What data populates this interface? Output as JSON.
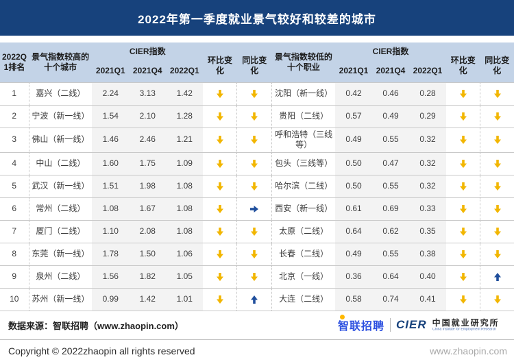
{
  "title": "2022年第一季度就业景气较好和较差的城市",
  "colors": {
    "banner": "#17427C",
    "header_bg": "#C3D3E7",
    "stripe_bg": "#F3F3F3",
    "arrow_down_yellow": "#F2B600",
    "arrow_up_blue": "#1F4E9C"
  },
  "table_headers": {
    "rank": "2022Q1排名",
    "left_group": "景气指数较高的十个城市",
    "right_group": "景气指数较低的十个职业",
    "cier": "CIER指数",
    "quarters": [
      "2021Q1",
      "2021Q4",
      "2022Q1"
    ],
    "mom": "环比变化",
    "yoy": "同比变化"
  },
  "chart_data": {
    "type": "table",
    "title": "2022年第一季度就业景气较好和较差的城市",
    "columns": [
      "2022Q1排名",
      "景气指数较高的十个城市",
      "2021Q1",
      "2021Q4",
      "2022Q1",
      "环比变化",
      "同比变化",
      "景气指数较低的十个职业",
      "2021Q1",
      "2021Q4",
      "2022Q1",
      "环比变化",
      "同比变化"
    ],
    "trend_legend": {
      "down": "黄色下降箭头",
      "up": "蓝色上升箭头",
      "flat": "蓝色持平箭头"
    },
    "rows": [
      {
        "rank": "1",
        "left": {
          "city": "嘉兴（二线）",
          "q1_2021": "2.24",
          "q4_2021": "3.13",
          "q1_2022": "1.42",
          "mom": "down",
          "yoy": "down"
        },
        "right": {
          "city": "沈阳（新一线）",
          "q1_2021": "0.42",
          "q4_2021": "0.46",
          "q1_2022": "0.28",
          "mom": "down",
          "yoy": "down"
        }
      },
      {
        "rank": "2",
        "left": {
          "city": "宁波（新一线）",
          "q1_2021": "1.54",
          "q4_2021": "2.10",
          "q1_2022": "1.28",
          "mom": "down",
          "yoy": "down"
        },
        "right": {
          "city": "贵阳（二线）",
          "q1_2021": "0.57",
          "q4_2021": "0.49",
          "q1_2022": "0.29",
          "mom": "down",
          "yoy": "down"
        }
      },
      {
        "rank": "3",
        "left": {
          "city": "佛山（新一线）",
          "q1_2021": "1.46",
          "q4_2021": "2.46",
          "q1_2022": "1.21",
          "mom": "down",
          "yoy": "down"
        },
        "right": {
          "city": "呼和浩特（三线等）",
          "q1_2021": "0.49",
          "q4_2021": "0.55",
          "q1_2022": "0.32",
          "mom": "down",
          "yoy": "down"
        }
      },
      {
        "rank": "4",
        "left": {
          "city": "中山（二线）",
          "q1_2021": "1.60",
          "q4_2021": "1.75",
          "q1_2022": "1.09",
          "mom": "down",
          "yoy": "down"
        },
        "right": {
          "city": "包头（三线等）",
          "q1_2021": "0.50",
          "q4_2021": "0.47",
          "q1_2022": "0.32",
          "mom": "down",
          "yoy": "down"
        }
      },
      {
        "rank": "5",
        "left": {
          "city": "武汉（新一线）",
          "q1_2021": "1.51",
          "q4_2021": "1.98",
          "q1_2022": "1.08",
          "mom": "down",
          "yoy": "down"
        },
        "right": {
          "city": "哈尔滨（二线）",
          "q1_2021": "0.50",
          "q4_2021": "0.55",
          "q1_2022": "0.32",
          "mom": "down",
          "yoy": "down"
        }
      },
      {
        "rank": "6",
        "left": {
          "city": "常州（二线）",
          "q1_2021": "1.08",
          "q4_2021": "1.67",
          "q1_2022": "1.08",
          "mom": "down",
          "yoy": "flat"
        },
        "right": {
          "city": "西安（新一线）",
          "q1_2021": "0.61",
          "q4_2021": "0.69",
          "q1_2022": "0.33",
          "mom": "down",
          "yoy": "down"
        }
      },
      {
        "rank": "7",
        "left": {
          "city": "厦门（二线）",
          "q1_2021": "1.10",
          "q4_2021": "2.08",
          "q1_2022": "1.08",
          "mom": "down",
          "yoy": "down"
        },
        "right": {
          "city": "太原（二线）",
          "q1_2021": "0.64",
          "q4_2021": "0.62",
          "q1_2022": "0.35",
          "mom": "down",
          "yoy": "down"
        }
      },
      {
        "rank": "8",
        "left": {
          "city": "东莞（新一线）",
          "q1_2021": "1.78",
          "q4_2021": "1.50",
          "q1_2022": "1.06",
          "mom": "down",
          "yoy": "down"
        },
        "right": {
          "city": "长春（二线）",
          "q1_2021": "0.49",
          "q4_2021": "0.55",
          "q1_2022": "0.38",
          "mom": "down",
          "yoy": "down"
        }
      },
      {
        "rank": "9",
        "left": {
          "city": "泉州（二线）",
          "q1_2021": "1.56",
          "q4_2021": "1.82",
          "q1_2022": "1.05",
          "mom": "down",
          "yoy": "down"
        },
        "right": {
          "city": "北京（一线）",
          "q1_2021": "0.36",
          "q4_2021": "0.64",
          "q1_2022": "0.40",
          "mom": "down",
          "yoy": "up"
        }
      },
      {
        "rank": "10",
        "left": {
          "city": "苏州（新一线）",
          "q1_2021": "0.99",
          "q4_2021": "1.42",
          "q1_2022": "1.01",
          "mom": "down",
          "yoy": "up"
        },
        "right": {
          "city": "大连（二线）",
          "q1_2021": "0.58",
          "q4_2021": "0.74",
          "q1_2022": "0.41",
          "mom": "down",
          "yoy": "down"
        }
      }
    ]
  },
  "footer": {
    "source": "数据来源：智联招聘（www.zhaopin.com）",
    "zhaopin_logo_text": "智联招聘",
    "cier_logo_text": "CIER",
    "institute_cn": "中国就业研究所",
    "institute_en": "China Institute for Employment Research",
    "copyright": "Copyright ©  2022zhaopin all rights reserved",
    "site": "www.zhaopin.com"
  }
}
